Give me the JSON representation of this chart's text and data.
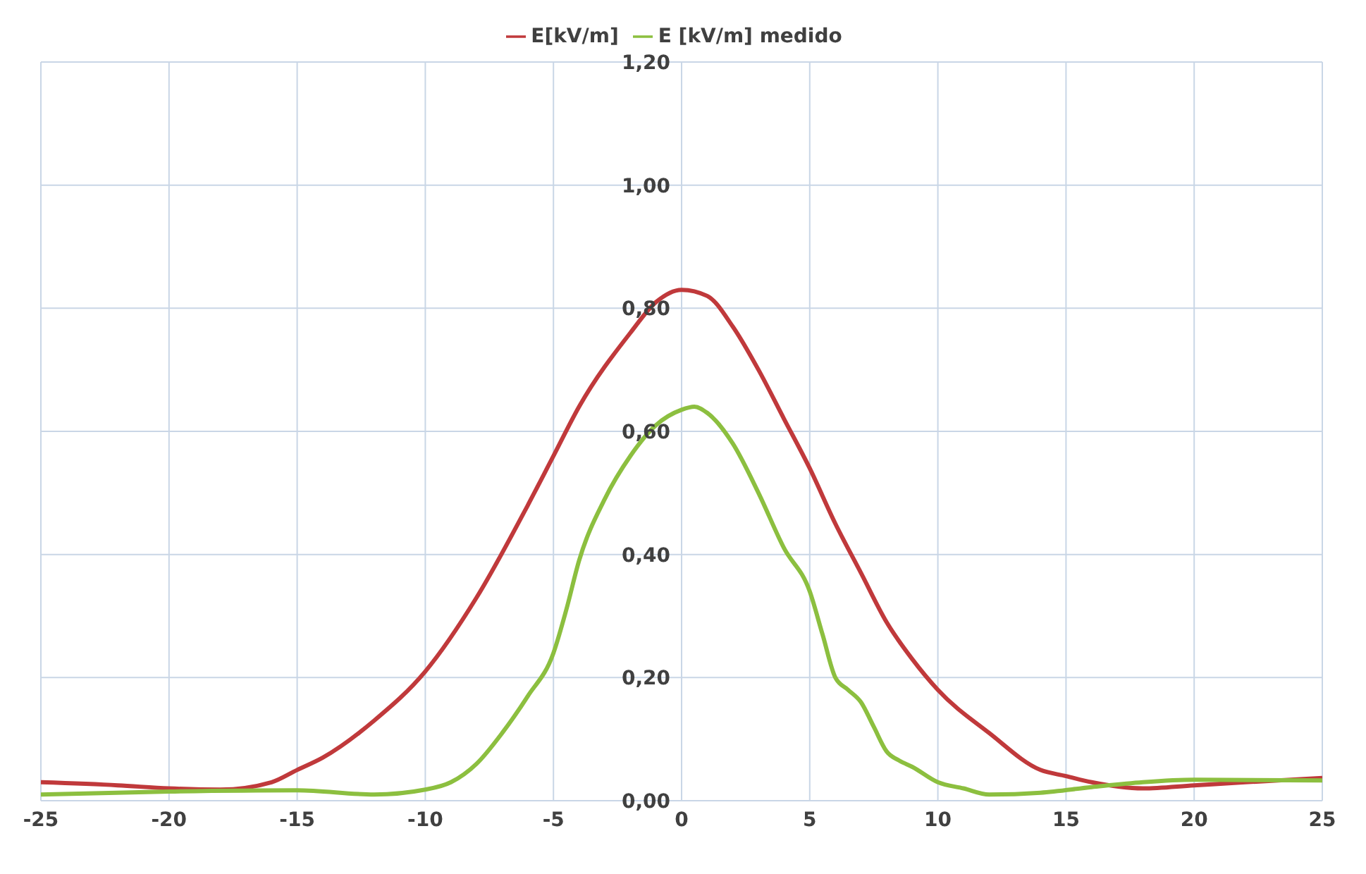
{
  "chart_data": {
    "type": "line",
    "legend": "top",
    "grid": true,
    "marker": "none",
    "xlim": [
      -25,
      25
    ],
    "xticks": [
      -25,
      -20,
      -15,
      -10,
      -5,
      0,
      5,
      10,
      15,
      20,
      25
    ],
    "ylim": [
      0,
      1.2
    ],
    "yticks": [
      {
        "value": 0,
        "label": "0,00"
      },
      {
        "value": 0.2,
        "label": "0,20"
      },
      {
        "value": 0.4,
        "label": "0,40"
      },
      {
        "value": 0.6,
        "label": "0,60"
      },
      {
        "value": 0.8,
        "label": "0,80"
      },
      {
        "value": 1,
        "label": "1,00"
      },
      {
        "value": 1.2,
        "label": "1,20"
      }
    ],
    "series": [
      {
        "name": "E[kV/m]",
        "color": "#c0393b",
        "x": [
          -25,
          -22,
          -20,
          -18,
          -16,
          -15,
          -14,
          -12,
          -10,
          -8,
          -6,
          -5,
          -4,
          -2,
          -1,
          0,
          1,
          2,
          3,
          4,
          5,
          6,
          7,
          8,
          9,
          10,
          12,
          14,
          15,
          16,
          18,
          20,
          22,
          25
        ],
        "values": [
          0.03,
          0.025,
          0.02,
          0.018,
          0.03,
          0.05,
          0.07,
          0.13,
          0.21,
          0.33,
          0.48,
          0.56,
          0.64,
          0.76,
          0.81,
          0.83,
          0.82,
          0.77,
          0.7,
          0.62,
          0.54,
          0.45,
          0.37,
          0.29,
          0.23,
          0.18,
          0.11,
          0.05,
          0.04,
          0.03,
          0.02,
          0.025,
          0.03,
          0.037
        ]
      },
      {
        "name": "E [kV/m] medido",
        "color": "#8cbf3f",
        "x": [
          -25,
          -20,
          -15,
          -12,
          -10,
          -9,
          -8,
          -7,
          -6,
          -5,
          -4.5,
          -4,
          -3,
          -2,
          -1,
          0,
          0.5,
          1,
          2,
          3,
          4,
          5,
          5.5,
          6,
          6.5,
          7,
          7.5,
          8,
          8.5,
          9,
          10,
          11,
          12,
          14,
          16,
          18,
          20,
          25
        ],
        "values": [
          0.01,
          0.015,
          0.017,
          0.01,
          0.018,
          0.03,
          0.06,
          0.11,
          0.17,
          0.24,
          0.31,
          0.39,
          0.49,
          0.56,
          0.61,
          0.635,
          0.64,
          0.63,
          0.58,
          0.5,
          0.41,
          0.34,
          0.27,
          0.2,
          0.18,
          0.16,
          0.12,
          0.08,
          0.065,
          0.055,
          0.03,
          0.02,
          0.01,
          0.013,
          0.022,
          0.03,
          0.034,
          0.033
        ]
      }
    ]
  }
}
